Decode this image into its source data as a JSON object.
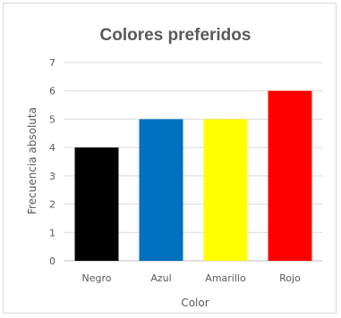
{
  "chart_data": {
    "type": "bar",
    "title": "Colores preferidos",
    "xlabel": "Color",
    "ylabel": "Frecuencia absoluta",
    "categories": [
      "Negro",
      "Azul",
      "Amarillo",
      "Rojo"
    ],
    "values": [
      4,
      5,
      5,
      6
    ],
    "colors": [
      "#000000",
      "#0070c0",
      "#ffff00",
      "#ff0000"
    ],
    "ylim": [
      0,
      7
    ],
    "yticks": [
      0,
      1,
      2,
      3,
      4,
      5,
      6,
      7
    ],
    "grid": true,
    "legend": "none"
  }
}
